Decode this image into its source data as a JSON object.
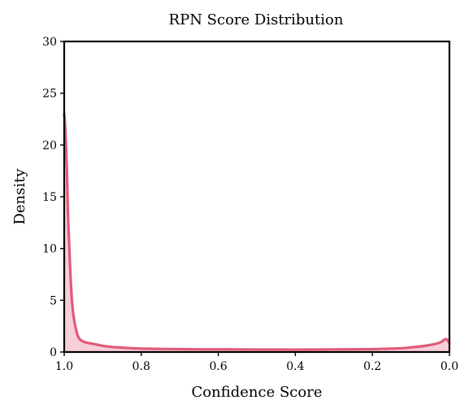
{
  "chart_data": {
    "type": "area",
    "title": "RPN Score Distribution",
    "xlabel": "Confidence Score",
    "ylabel": "Density",
    "xlim": [
      1.0,
      0.0
    ],
    "ylim": [
      0,
      30
    ],
    "x_inverted": true,
    "grid": false,
    "x_ticks": [
      1.0,
      0.8,
      0.6,
      0.4,
      0.2,
      0.0
    ],
    "x_tick_labels": [
      "1.0",
      "0.8",
      "0.6",
      "0.4",
      "0.2",
      "0.0"
    ],
    "y_ticks": [
      0,
      5,
      10,
      15,
      20,
      25,
      30
    ],
    "y_tick_labels": [
      "0",
      "5",
      "10",
      "15",
      "20",
      "25",
      "30"
    ],
    "series": [
      {
        "x": [
          1.0,
          0.997,
          0.993,
          0.99,
          0.985,
          0.98,
          0.975,
          0.97,
          0.965,
          0.96,
          0.95,
          0.94,
          0.92,
          0.9,
          0.88,
          0.86,
          0.84,
          0.82,
          0.8,
          0.75,
          0.7,
          0.65,
          0.6,
          0.55,
          0.5,
          0.45,
          0.4,
          0.35,
          0.3,
          0.25,
          0.2,
          0.15,
          0.12,
          0.1,
          0.08,
          0.06,
          0.04,
          0.03,
          0.02,
          0.015,
          0.01,
          0.005,
          0.0
        ],
        "y": [
          23.0,
          21.5,
          17.5,
          13.0,
          8.5,
          5.0,
          3.3,
          2.3,
          1.6,
          1.25,
          1.0,
          0.9,
          0.75,
          0.6,
          0.5,
          0.45,
          0.4,
          0.36,
          0.33,
          0.3,
          0.28,
          0.26,
          0.26,
          0.25,
          0.24,
          0.24,
          0.23,
          0.24,
          0.25,
          0.26,
          0.28,
          0.33,
          0.38,
          0.45,
          0.52,
          0.62,
          0.75,
          0.85,
          1.0,
          1.15,
          1.25,
          1.15,
          0.85
        ]
      }
    ],
    "colors": {
      "line": "#e15a7a",
      "fill": "#f7c6d1",
      "axis": "#000000"
    }
  }
}
